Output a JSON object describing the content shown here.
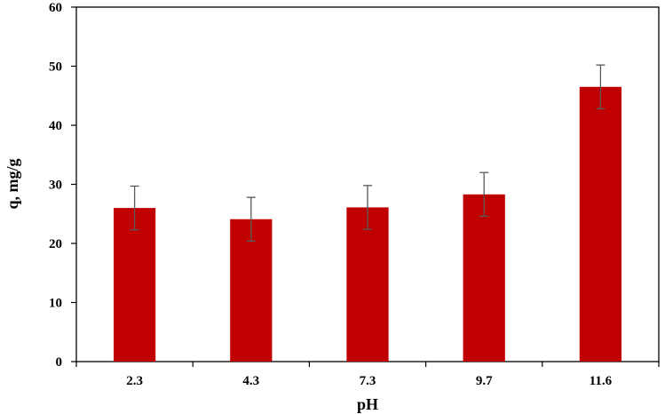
{
  "chart_data": {
    "type": "bar",
    "title": "",
    "xlabel": "pH",
    "ylabel": "q, mg/g",
    "categories": [
      "2.3",
      "4.3",
      "7.3",
      "9.7",
      "11.6"
    ],
    "series": [
      {
        "values": [
          26.0,
          24.1,
          26.1,
          28.3,
          46.5
        ],
        "error": [
          3.7,
          3.7,
          3.7,
          3.7,
          3.7
        ]
      }
    ],
    "ylim": [
      0,
      60
    ],
    "yticks": [
      0,
      10,
      20,
      30,
      40,
      50,
      60
    ],
    "grid": false,
    "legend": "none",
    "bar_color": "#c00000",
    "error_bar_color": "#595959"
  }
}
